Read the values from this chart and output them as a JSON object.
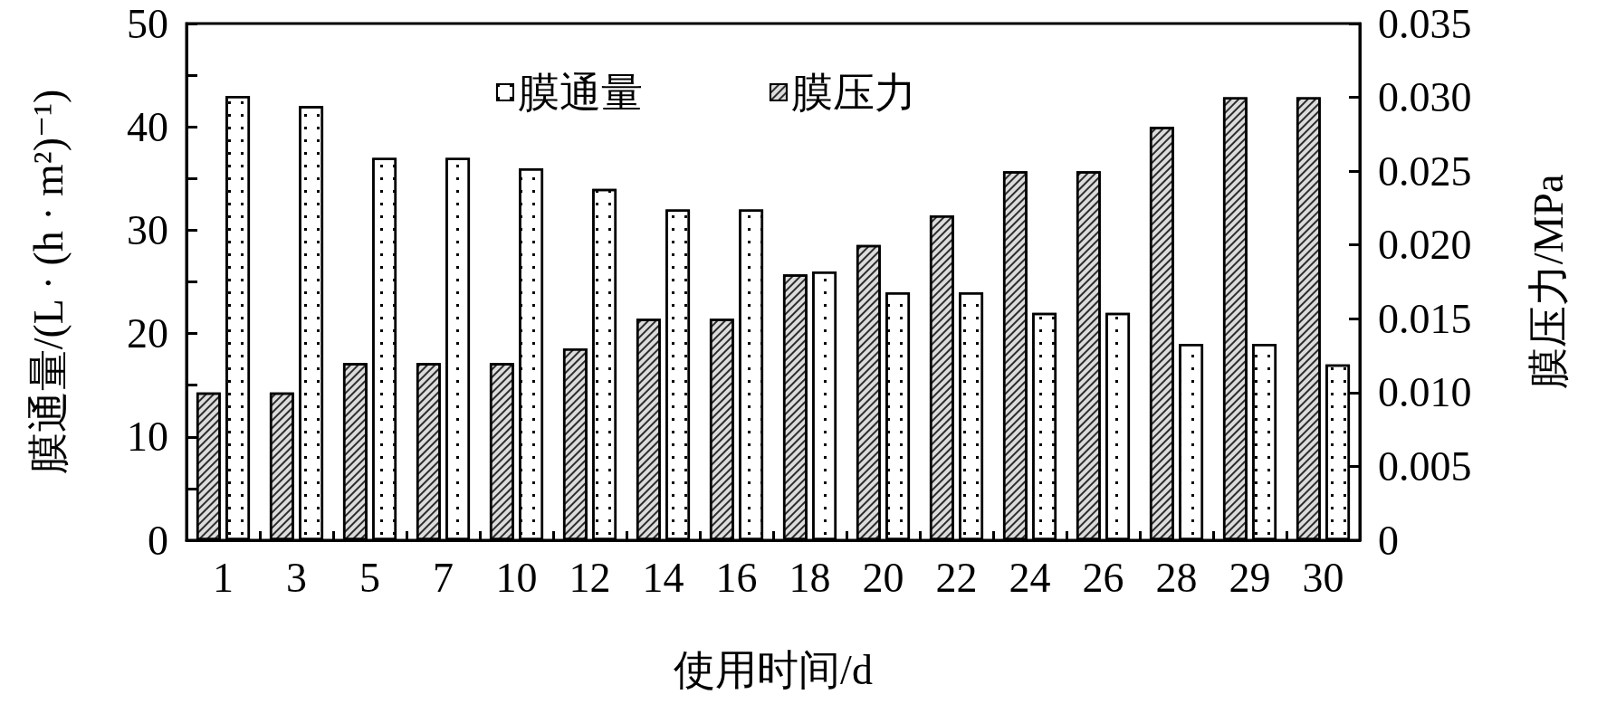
{
  "chart_data": {
    "type": "bar",
    "xlabel": "使用时间/d",
    "ylabel": "膜通量/(L · (h · m²)⁻¹)",
    "y2label": "膜压力/MPa",
    "categories": [
      "1",
      "3",
      "5",
      "7",
      "10",
      "12",
      "14",
      "16",
      "18",
      "20",
      "22",
      "24",
      "26",
      "28",
      "29",
      "30"
    ],
    "series": [
      {
        "name": "膜通量",
        "color": "#ffffff",
        "values": [
          43,
          42,
          37,
          37,
          36,
          34,
          32,
          32,
          26,
          24,
          24,
          22,
          22,
          19,
          19,
          17
        ]
      },
      {
        "name": "膜压力",
        "color": "#dcdcdc",
        "axis": "y2",
        "values": [
          0.01,
          0.01,
          0.012,
          0.012,
          0.012,
          0.013,
          0.015,
          0.015,
          0.018,
          0.02,
          0.022,
          0.025,
          0.025,
          0.028,
          0.03,
          0.03
        ]
      }
    ],
    "ylim": [
      0,
      50
    ],
    "yticks": [
      0,
      {
        "value": 5,
        "label": null
      },
      10,
      {
        "value": 15,
        "label": null
      },
      20,
      {
        "value": 25,
        "label": null
      },
      30,
      {
        "value": 35,
        "label": null
      },
      40,
      {
        "value": 45,
        "label": null
      },
      50
    ],
    "y2lim": [
      0,
      0.035
    ],
    "y2ticks": [
      0,
      0.005,
      {
        "value": 0.01,
        "label": "0.010"
      },
      0.015,
      {
        "value": 0.02,
        "label": "0.020"
      },
      0.025,
      {
        "value": 0.03,
        "label": "0.030"
      },
      0.035
    ],
    "legend": "top"
  }
}
